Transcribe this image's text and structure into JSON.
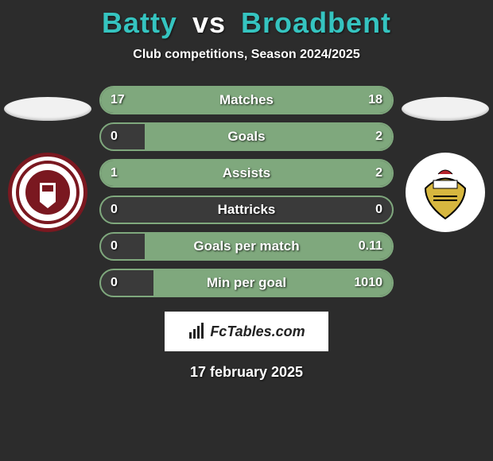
{
  "background_color": "#2c2c2c",
  "title": {
    "player_left": "Batty",
    "vs": "vs",
    "player_right": "Broadbent",
    "color_left": "#35c4c0",
    "color_vs": "#ffffff",
    "color_right": "#35c4c0",
    "fontsize": 36
  },
  "subtitle": "Club competitions, Season 2024/2025",
  "stat_rows": [
    {
      "label": "Matches",
      "left_val": "17",
      "right_val": "18",
      "left_pct": 18,
      "right_pct": 82
    },
    {
      "label": "Goals",
      "left_val": "0",
      "right_val": "2",
      "left_pct": 0,
      "right_pct": 85
    },
    {
      "label": "Assists",
      "left_val": "1",
      "right_val": "2",
      "left_pct": 18,
      "right_pct": 82
    },
    {
      "label": "Hattricks",
      "left_val": "0",
      "right_val": "0",
      "left_pct": 0,
      "right_pct": 0
    },
    {
      "label": "Goals per match",
      "left_val": "0",
      "right_val": "0.11",
      "left_pct": 0,
      "right_pct": 85
    },
    {
      "label": "Min per goal",
      "left_val": "0",
      "right_val": "1010",
      "left_pct": 0,
      "right_pct": 82
    }
  ],
  "bar_row": {
    "height": 36,
    "border_radius": 18,
    "border_color": "#7fa87d",
    "bg_color": "#3a3a3a",
    "left_color": "#7fa87d",
    "right_color": "#7fa87d",
    "label_fontsize": 17
  },
  "footer": {
    "logo_text": "FcTables.com",
    "date": "17 february 2025"
  }
}
